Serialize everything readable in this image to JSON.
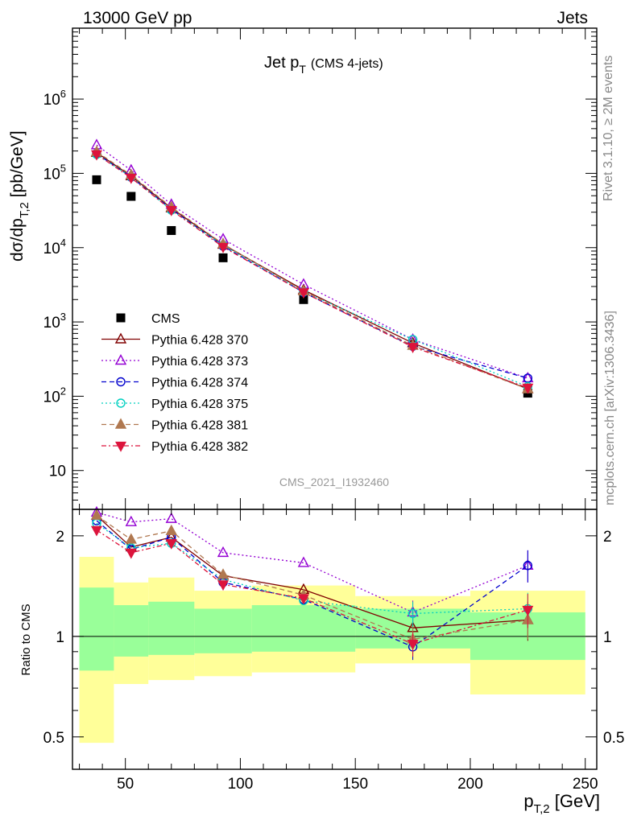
{
  "header": {
    "left": "13000 GeV pp",
    "right": "Jets"
  },
  "side_text": {
    "rivet": "Rivet 3.1.10, ≥ 2M events",
    "mcplots": "mcplots.cern.ch [arXiv:1306.3436]"
  },
  "analysis_id": "CMS_2021_I1932460",
  "chart_data": [
    {
      "type": "scatter",
      "title_main": "Jet p",
      "title_sub": "T",
      "title_extra": "(CMS 4-jets)",
      "ylabel_parts": {
        "a": "dσ/dp",
        "sub": "T,2",
        "b": " [pb/GeV]"
      },
      "y_scale": "log",
      "ylim": [
        3,
        9000000
      ],
      "xlim": [
        27,
        255
      ],
      "y_ticks": [
        {
          "value": 10,
          "label": "10",
          "sup": ""
        },
        {
          "value": 100,
          "label": "10",
          "sup": "2"
        },
        {
          "value": 1000,
          "label": "10",
          "sup": "3"
        },
        {
          "value": 10000,
          "label": "10",
          "sup": "4"
        },
        {
          "value": 100000,
          "label": "10",
          "sup": "5"
        },
        {
          "value": 1000000,
          "label": "10",
          "sup": "6"
        }
      ],
      "legend_position": "bottom-left",
      "series": [
        {
          "name": "CMS",
          "color": "#000000",
          "marker": "square-filled",
          "line": "none",
          "x": [
            37.5,
            52.5,
            70,
            92.5,
            127.5,
            175,
            225
          ],
          "y": [
            82000,
            49000,
            17000,
            7300,
            2000,
            490,
            110
          ]
        },
        {
          "name": "Pythia 6.428 370",
          "color": "#800000",
          "marker": "triangle-up-open",
          "line": "solid",
          "x": [
            37.5,
            52.5,
            70,
            92.5,
            127.5,
            175,
            225
          ],
          "y": [
            190000,
            92000,
            34000,
            11000,
            2700,
            520,
            125
          ]
        },
        {
          "name": "Pythia 6.428 373",
          "color": "#9400d3",
          "marker": "triangle-up-open",
          "line": "dotted",
          "x": [
            37.5,
            52.5,
            70,
            92.5,
            127.5,
            175,
            225
          ],
          "y": [
            240000,
            110000,
            38000,
            13000,
            3200,
            580,
            175
          ]
        },
        {
          "name": "Pythia 6.428 374",
          "color": "#0000cd",
          "marker": "circle-open",
          "line": "dashed",
          "x": [
            37.5,
            52.5,
            70,
            92.5,
            127.5,
            175,
            225
          ],
          "y": [
            185000,
            89000,
            33000,
            10500,
            2500,
            470,
            175
          ]
        },
        {
          "name": "Pythia 6.428 375",
          "color": "#00d0c0",
          "marker": "circle-open",
          "line": "dotted",
          "x": [
            37.5,
            52.5,
            70,
            92.5,
            127.5,
            175,
            225
          ],
          "y": [
            180000,
            90000,
            32000,
            10800,
            2550,
            580,
            135
          ]
        },
        {
          "name": "Pythia 6.428 381",
          "color": "#b07850",
          "marker": "triangle-up-filled",
          "line": "dashed",
          "x": [
            37.5,
            52.5,
            70,
            92.5,
            127.5,
            175,
            225
          ],
          "y": [
            195000,
            95000,
            35000,
            11200,
            2600,
            480,
            125
          ]
        },
        {
          "name": "Pythia 6.428 382",
          "color": "#dc143c",
          "marker": "triangle-down-filled",
          "line": "dashdot",
          "x": [
            37.5,
            52.5,
            70,
            92.5,
            127.5,
            175,
            225
          ],
          "y": [
            180000,
            87000,
            32000,
            10200,
            2500,
            460,
            130
          ]
        }
      ]
    },
    {
      "type": "scatter",
      "ylabel": "Ratio to CMS",
      "xlabel_parts": {
        "a": "p",
        "sub": "T,2",
        "b": " [GeV]"
      },
      "y_scale": "log",
      "ylim": [
        0.4,
        2.4
      ],
      "xlim": [
        27,
        255
      ],
      "y_ticks": [
        {
          "value": 0.5,
          "label": "0.5"
        },
        {
          "value": 1,
          "label": "1"
        },
        {
          "value": 2,
          "label": "2"
        }
      ],
      "x_ticks": [
        50,
        100,
        150,
        200,
        250
      ],
      "reference_line": 1,
      "bands": {
        "edges": [
          30,
          45,
          60,
          80,
          105,
          150,
          200,
          250
        ],
        "inner_color": "#99ff99",
        "outer_color": "#ffff99",
        "inner_low": [
          0.79,
          0.87,
          0.88,
          0.89,
          0.9,
          0.92,
          0.85
        ],
        "inner_high": [
          1.4,
          1.24,
          1.27,
          1.21,
          1.24,
          1.21,
          1.18
        ],
        "outer_low": [
          0.48,
          0.72,
          0.74,
          0.76,
          0.78,
          0.83,
          0.67
        ],
        "outer_high": [
          1.73,
          1.45,
          1.5,
          1.37,
          1.42,
          1.32,
          1.37
        ]
      },
      "series": [
        {
          "name": "Pythia 6.428 370",
          "color": "#800000",
          "marker": "triangle-up-open",
          "line": "solid",
          "x": [
            37.5,
            52.5,
            70,
            92.5,
            127.5,
            175,
            225
          ],
          "y": [
            2.3,
            1.85,
            1.98,
            1.52,
            1.38,
            1.06,
            1.12
          ],
          "err": [
            0,
            0,
            0,
            0,
            0,
            0.1,
            0.15
          ]
        },
        {
          "name": "Pythia 6.428 373",
          "color": "#9400d3",
          "marker": "triangle-up-open",
          "line": "dotted",
          "x": [
            37.5,
            52.5,
            70,
            92.5,
            127.5,
            175,
            225
          ],
          "y": [
            2.35,
            2.2,
            2.25,
            1.78,
            1.66,
            1.18,
            1.63
          ],
          "err": [
            0,
            0,
            0,
            0,
            0,
            0.1,
            0.18
          ]
        },
        {
          "name": "Pythia 6.428 374",
          "color": "#0000cd",
          "marker": "circle-open",
          "line": "dashed",
          "x": [
            37.5,
            52.5,
            70,
            92.5,
            127.5,
            175,
            225
          ],
          "y": [
            2.22,
            1.82,
            1.98,
            1.45,
            1.29,
            0.93,
            1.63
          ],
          "err": [
            0,
            0,
            0,
            0,
            0,
            0.08,
            0.18
          ]
        },
        {
          "name": "Pythia 6.428 375",
          "color": "#00d0c0",
          "marker": "circle-open",
          "line": "dotted",
          "x": [
            37.5,
            52.5,
            70,
            92.5,
            127.5,
            175,
            225
          ],
          "y": [
            2.18,
            1.84,
            1.9,
            1.48,
            1.28,
            1.17,
            1.21
          ],
          "err": [
            0,
            0,
            0,
            0,
            0,
            0.1,
            0.14
          ]
        },
        {
          "name": "Pythia 6.428 381",
          "color": "#b07850",
          "marker": "triangle-up-filled",
          "line": "dashed",
          "x": [
            37.5,
            52.5,
            70,
            92.5,
            127.5,
            175,
            225
          ],
          "y": [
            2.3,
            1.95,
            2.07,
            1.53,
            1.33,
            0.98,
            1.12
          ],
          "err": [
            0,
            0,
            0,
            0,
            0,
            0.09,
            0.14
          ]
        },
        {
          "name": "Pythia 6.428 382",
          "color": "#dc143c",
          "marker": "triangle-down-filled",
          "line": "dashdot",
          "x": [
            37.5,
            52.5,
            70,
            92.5,
            127.5,
            175,
            225
          ],
          "y": [
            2.08,
            1.78,
            1.9,
            1.43,
            1.3,
            0.95,
            1.2
          ],
          "err": [
            0,
            0,
            0,
            0,
            0,
            0.08,
            0.14
          ]
        }
      ]
    }
  ]
}
